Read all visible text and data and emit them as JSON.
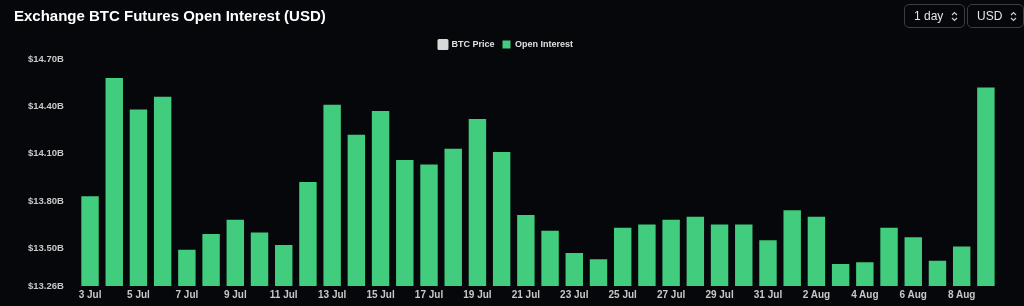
{
  "chart_data": {
    "type": "bar",
    "title": "Exchange BTC Futures Open Interest (USD)",
    "categories": [
      "3 Jul",
      null,
      "5 Jul",
      null,
      "7 Jul",
      null,
      "9 Jul",
      null,
      "11 Jul",
      null,
      "13 Jul",
      null,
      "15 Jul",
      null,
      "17 Jul",
      null,
      "19 Jul",
      null,
      "21 Jul",
      null,
      "23 Jul",
      null,
      "25 Jul",
      null,
      "27 Jul",
      null,
      "29 Jul",
      null,
      "31 Jul",
      null,
      "2 Aug",
      null,
      "4 Aug",
      null,
      "6 Aug",
      null,
      "8 Aug",
      null
    ],
    "series": [
      {
        "name": "BTC Price",
        "type": "line",
        "color": "#d9d9d9",
        "values": [
          null,
          null,
          null,
          null,
          null,
          null,
          null,
          null,
          null,
          null,
          null,
          null,
          null,
          null,
          null,
          null,
          null,
          null,
          null,
          null,
          null,
          null,
          null,
          null,
          null,
          null,
          null,
          null,
          null,
          null,
          null,
          null,
          null,
          null,
          null,
          null,
          null,
          null
        ]
      },
      {
        "name": "Open Interest",
        "color": "#41cd7d",
        "values": [
          13.83,
          14.58,
          14.38,
          14.46,
          13.49,
          13.59,
          13.68,
          13.6,
          13.52,
          13.92,
          14.41,
          14.22,
          14.37,
          14.06,
          14.03,
          14.13,
          14.32,
          14.11,
          13.71,
          13.61,
          13.47,
          13.43,
          13.63,
          13.65,
          13.68,
          13.7,
          13.65,
          13.65,
          13.55,
          13.74,
          13.7,
          13.4,
          13.41,
          13.63,
          13.57,
          13.42,
          13.51,
          14.52
        ]
      }
    ],
    "ylim": [
      13.26,
      14.7
    ],
    "yticks": [
      {
        "value": 13.26,
        "label": "$13.26B"
      },
      {
        "value": 13.5,
        "label": "$13.50B"
      },
      {
        "value": 13.8,
        "label": "$13.80B"
      },
      {
        "value": 14.1,
        "label": "$14.10B"
      },
      {
        "value": 14.4,
        "label": "$14.40B"
      },
      {
        "value": 14.7,
        "label": "$14.70B"
      }
    ],
    "legend": "top",
    "annotations": [
      "1 day",
      "USD"
    ]
  }
}
